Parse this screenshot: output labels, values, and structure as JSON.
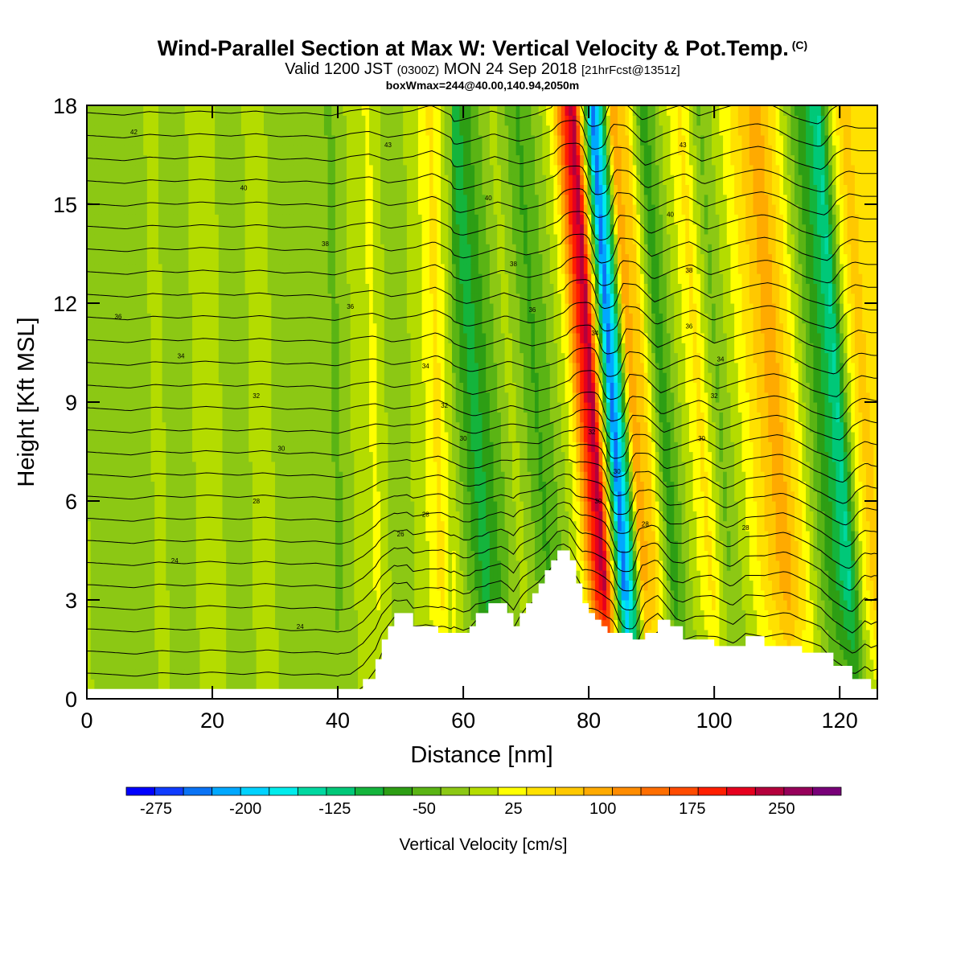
{
  "header": {
    "title": "Wind-Parallel Section at Max W: Vertical Velocity & Pot.Temp.",
    "title_mark": "(C)",
    "subtitle_a": "Valid 1200 JST",
    "subtitle_b": "(0300Z)",
    "subtitle_c": "MON 24 Sep 2018",
    "subtitle_d": "[21hrFcst@1351z]",
    "subtitle2": "boxWmax=244@40.00,140.94,2050m"
  },
  "chart_data": {
    "type": "heatmap",
    "xlabel": "Distance [nm]",
    "ylabel": "Height [Kft MSL]",
    "xlim": [
      0,
      126
    ],
    "ylim": [
      0,
      18
    ],
    "xticks": [
      0,
      20,
      40,
      60,
      80,
      100,
      120
    ],
    "yticks": [
      0,
      3,
      6,
      9,
      12,
      15,
      18
    ],
    "colorbar": {
      "label": "Vertical Velocity [cm/s]",
      "tick_labels": [
        "-275",
        "-200",
        "-125",
        "-50",
        "25",
        "100",
        "175",
        "250"
      ],
      "tick_values": [
        -275,
        -200,
        -125,
        -50,
        25,
        100,
        175,
        250
      ],
      "range": [
        -300,
        300
      ],
      "bin_width": 25,
      "colors": [
        "#0000ff",
        "#0f3cff",
        "#0a73f5",
        "#00a8ff",
        "#00d2ff",
        "#00ecec",
        "#00d8a0",
        "#00c878",
        "#14b43c",
        "#2d9e14",
        "#5ab414",
        "#8cc814",
        "#b4dc00",
        "#ffff00",
        "#ffe100",
        "#ffc800",
        "#ffaa00",
        "#ff8c00",
        "#ff6e00",
        "#ff4b00",
        "#ff1e00",
        "#e6001e",
        "#b4003c",
        "#96005a",
        "#780078"
      ]
    },
    "terrain": [
      [
        0,
        0.3
      ],
      [
        6,
        0.3
      ],
      [
        12,
        0.3
      ],
      [
        20,
        0.3
      ],
      [
        28,
        0.3
      ],
      [
        36,
        0.3
      ],
      [
        42,
        0.3
      ],
      [
        44,
        0.6
      ],
      [
        46,
        1.2
      ],
      [
        47,
        1.8
      ],
      [
        48,
        2.2
      ],
      [
        49,
        2.6
      ],
      [
        51,
        2.6
      ],
      [
        52,
        2.2
      ],
      [
        54,
        2.2
      ],
      [
        56,
        2.0
      ],
      [
        58,
        2.0
      ],
      [
        60,
        2.0
      ],
      [
        61,
        2.2
      ],
      [
        62,
        2.6
      ],
      [
        64,
        2.9
      ],
      [
        66,
        2.9
      ],
      [
        67,
        2.6
      ],
      [
        68,
        2.2
      ],
      [
        69,
        2.6
      ],
      [
        70,
        2.9
      ],
      [
        71,
        3.2
      ],
      [
        72,
        3.5
      ],
      [
        73,
        3.9
      ],
      [
        74,
        4.2
      ],
      [
        75,
        4.5
      ],
      [
        76,
        4.5
      ],
      [
        77,
        4.2
      ],
      [
        78,
        3.5
      ],
      [
        79,
        2.9
      ],
      [
        80,
        2.6
      ],
      [
        81,
        2.4
      ],
      [
        82,
        2.2
      ],
      [
        83,
        2.0
      ],
      [
        85,
        2.0
      ],
      [
        87,
        1.8
      ],
      [
        89,
        2.0
      ],
      [
        91,
        2.4
      ],
      [
        93,
        2.2
      ],
      [
        95,
        1.8
      ],
      [
        97,
        1.8
      ],
      [
        100,
        1.6
      ],
      [
        103,
        1.6
      ],
      [
        105,
        1.9
      ],
      [
        108,
        1.6
      ],
      [
        111,
        1.6
      ],
      [
        114,
        1.4
      ],
      [
        117,
        1.4
      ],
      [
        119,
        1.0
      ],
      [
        122,
        0.6
      ],
      [
        124,
        0.6
      ],
      [
        125,
        0.3
      ],
      [
        126,
        0.3
      ]
    ],
    "columns": [
      {
        "x": 0,
        "w": 0
      },
      {
        "x": 3,
        "w": -10
      },
      {
        "x": 7,
        "w": -25
      },
      {
        "x": 11,
        "w": 5
      },
      {
        "x": 15,
        "w": -10
      },
      {
        "x": 19,
        "w": 10
      },
      {
        "x": 24,
        "w": -10
      },
      {
        "x": 28,
        "w": 10
      },
      {
        "x": 32,
        "w": -15
      },
      {
        "x": 36,
        "w": -5
      },
      {
        "x": 40,
        "w": -30
      },
      {
        "x": 43,
        "w": 10
      },
      {
        "x": 46,
        "w": 30
      },
      {
        "x": 49,
        "w": -20
      },
      {
        "x": 53,
        "w": 10
      },
      {
        "x": 56,
        "w": 60
      },
      {
        "x": 59,
        "w": -20
      },
      {
        "x": 62,
        "w": -90
      },
      {
        "x": 65,
        "w": -40
      },
      {
        "x": 68,
        "w": 10
      },
      {
        "x": 72,
        "w": -55
      },
      {
        "x": 75,
        "w": -15
      },
      {
        "x": 77.5,
        "w": 40
      },
      {
        "x": 79.5,
        "w": 210
      },
      {
        "x": 81,
        "w": 270
      },
      {
        "x": 82.5,
        "w": 10
      },
      {
        "x": 84,
        "w": -250
      },
      {
        "x": 85.5,
        "w": -120
      },
      {
        "x": 87,
        "w": 110
      },
      {
        "x": 89,
        "w": 90
      },
      {
        "x": 92,
        "w": -70
      },
      {
        "x": 95,
        "w": 5
      },
      {
        "x": 98,
        "w": 60
      },
      {
        "x": 101,
        "w": -30
      },
      {
        "x": 104,
        "w": 20
      },
      {
        "x": 107,
        "w": 70
      },
      {
        "x": 110,
        "w": 120
      },
      {
        "x": 113,
        "w": 50
      },
      {
        "x": 116,
        "w": -40
      },
      {
        "x": 118,
        "w": -80
      },
      {
        "x": 120,
        "w": -130
      },
      {
        "x": 122,
        "w": 20
      },
      {
        "x": 124,
        "w": 90
      },
      {
        "x": 126,
        "w": 60
      }
    ],
    "theta": {
      "levels": [
        18,
        19,
        20,
        21,
        22,
        23,
        24,
        25,
        26,
        27,
        28,
        29,
        30,
        31,
        32,
        33,
        34,
        35,
        36,
        37,
        38,
        39,
        40,
        41,
        42,
        43,
        44,
        45
      ],
      "interval": 1,
      "surface_value": 18.2,
      "lapse_per_kft": 1.45,
      "labels": [
        {
          "text": "42",
          "x": 7.5,
          "y": 17.2
        },
        {
          "text": "40",
          "x": 25,
          "y": 15.5
        },
        {
          "text": "38",
          "x": 38,
          "y": 13.8
        },
        {
          "text": "36",
          "x": 5,
          "y": 11.6
        },
        {
          "text": "36",
          "x": 42,
          "y": 11.9
        },
        {
          "text": "34",
          "x": 15,
          "y": 10.4
        },
        {
          "text": "34",
          "x": 54,
          "y": 10.1
        },
        {
          "text": "32",
          "x": 27,
          "y": 9.2
        },
        {
          "text": "32",
          "x": 57,
          "y": 8.9
        },
        {
          "text": "30",
          "x": 31,
          "y": 7.6
        },
        {
          "text": "30",
          "x": 60,
          "y": 7.9
        },
        {
          "text": "28",
          "x": 27,
          "y": 6.0
        },
        {
          "text": "28",
          "x": 54,
          "y": 5.6
        },
        {
          "text": "26",
          "x": 50,
          "y": 5.0
        },
        {
          "text": "24",
          "x": 14,
          "y": 4.2
        },
        {
          "text": "24",
          "x": 34,
          "y": 2.2
        },
        {
          "text": "43",
          "x": 48,
          "y": 16.8
        },
        {
          "text": "40",
          "x": 64,
          "y": 15.2
        },
        {
          "text": "38",
          "x": 68,
          "y": 13.2
        },
        {
          "text": "36",
          "x": 71,
          "y": 11.8
        },
        {
          "text": "34",
          "x": 81,
          "y": 11.1
        },
        {
          "text": "32",
          "x": 80.5,
          "y": 8.1
        },
        {
          "text": "30",
          "x": 84.5,
          "y": 6.9
        },
        {
          "text": "30",
          "x": 81.5,
          "y": 6.0
        },
        {
          "text": "28",
          "x": 89,
          "y": 5.3
        },
        {
          "text": "43",
          "x": 95,
          "y": 16.8
        },
        {
          "text": "40",
          "x": 93,
          "y": 14.7
        },
        {
          "text": "38",
          "x": 96,
          "y": 13.0
        },
        {
          "text": "36",
          "x": 96,
          "y": 11.3
        },
        {
          "text": "34",
          "x": 101,
          "y": 10.3
        },
        {
          "text": "32",
          "x": 100,
          "y": 9.2
        },
        {
          "text": "30",
          "x": 98,
          "y": 7.9
        },
        {
          "text": "28",
          "x": 105,
          "y": 5.2
        }
      ]
    }
  }
}
